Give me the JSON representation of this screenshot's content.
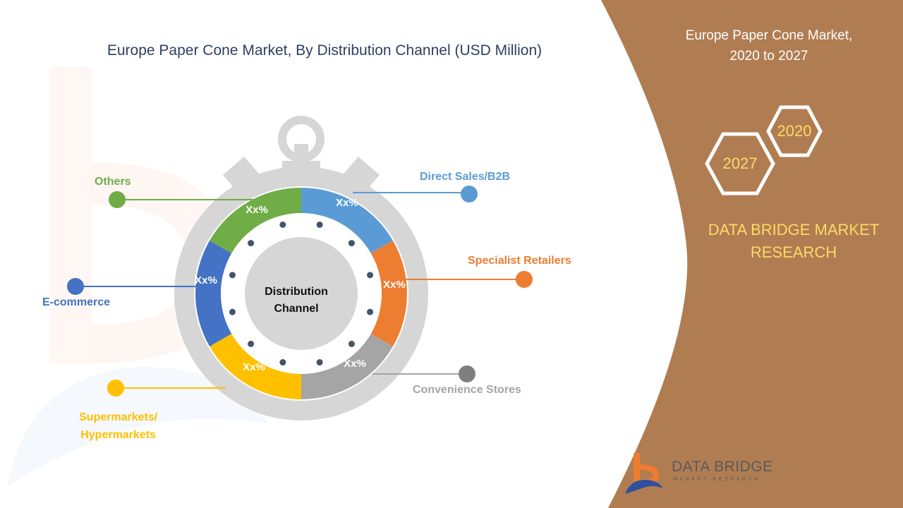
{
  "title": "Europe Paper Cone Market, By Distribution Channel (USD Million)",
  "side": {
    "title_line1": "Europe Paper Cone Market,",
    "title_line2": "2020 to 2027",
    "year_start": "2020",
    "year_end": "2027",
    "brand_line1": "DATA BRIDGE MARKET",
    "brand_line2": "RESEARCH",
    "color": "#b07d52"
  },
  "center": {
    "line1": "Distribution",
    "line2": "Channel"
  },
  "segments": [
    {
      "label": "Direct Sales/B2B",
      "value": "Xx%",
      "color": "#5b9bd5"
    },
    {
      "label": "Specialist Retailers",
      "value": "Xx%",
      "color": "#ed7d31"
    },
    {
      "label": "Convenience Stores",
      "value": "Xx%",
      "color": "#a5a5a5"
    },
    {
      "label_line1": "Supermarkets/",
      "label_line2": "Hypermarkets",
      "value": "Xx%",
      "color": "#ffc000"
    },
    {
      "label": "E-commerce",
      "value": "Xx%",
      "color": "#4472c4"
    },
    {
      "label": "Others",
      "value": "Xx%",
      "color": "#70ad47"
    }
  ],
  "logo": {
    "name": "DATA BRIDGE",
    "tagline": "MARKET RESEARCH"
  }
}
